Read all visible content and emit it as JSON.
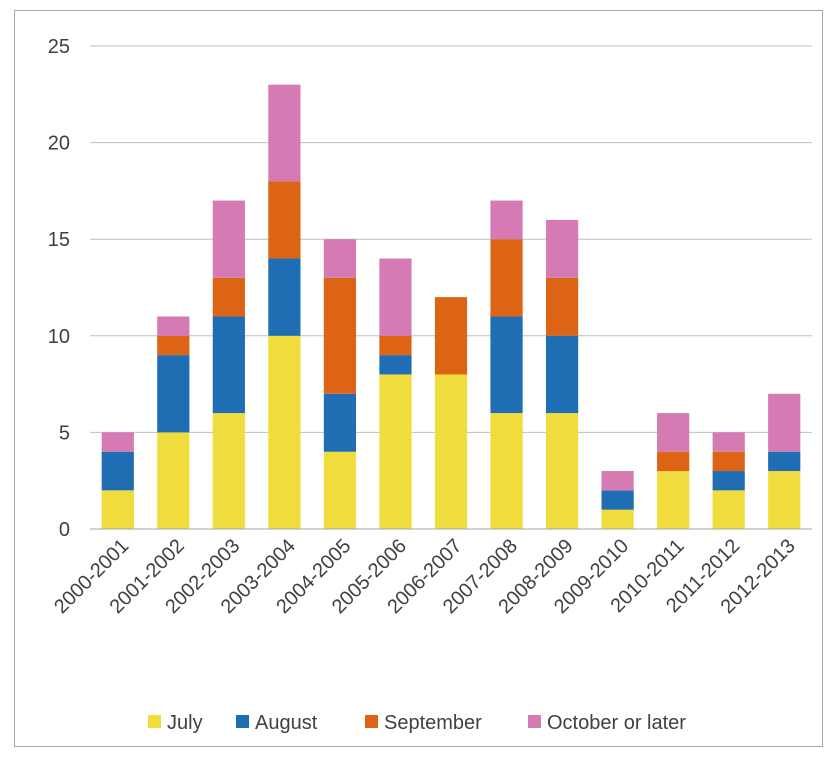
{
  "chart_data": {
    "type": "bar",
    "stacked": true,
    "categories": [
      "2000-2001",
      "2001-2002",
      "2002-2003",
      "2003-2004",
      "2004-2005",
      "2005-2006",
      "2006-2007",
      "2007-2008",
      "2008-2009",
      "2009-2010",
      "2010-2011",
      "2011-2012",
      "2012-2013"
    ],
    "series": [
      {
        "name": "July",
        "color": "#f0dc3c",
        "values": [
          2,
          5,
          6,
          10,
          4,
          8,
          8,
          6,
          6,
          1,
          3,
          2,
          3
        ]
      },
      {
        "name": "August",
        "color": "#1f6eb4",
        "values": [
          2,
          4,
          5,
          4,
          3,
          1,
          0,
          5,
          4,
          1,
          0,
          1,
          1
        ]
      },
      {
        "name": "September",
        "color": "#dc6414",
        "values": [
          0,
          1,
          2,
          4,
          6,
          1,
          4,
          4,
          3,
          0,
          1,
          1,
          0
        ]
      },
      {
        "name": "October or later",
        "color": "#d67ab4",
        "values": [
          1,
          1,
          4,
          5,
          2,
          4,
          0,
          2,
          3,
          1,
          2,
          1,
          3
        ]
      }
    ],
    "title": "",
    "xlabel": "",
    "ylabel": "",
    "ylim": [
      0,
      25
    ],
    "yticks": [
      0,
      5,
      10,
      15,
      20,
      25
    ],
    "grid": true,
    "legend_position": "bottom"
  }
}
